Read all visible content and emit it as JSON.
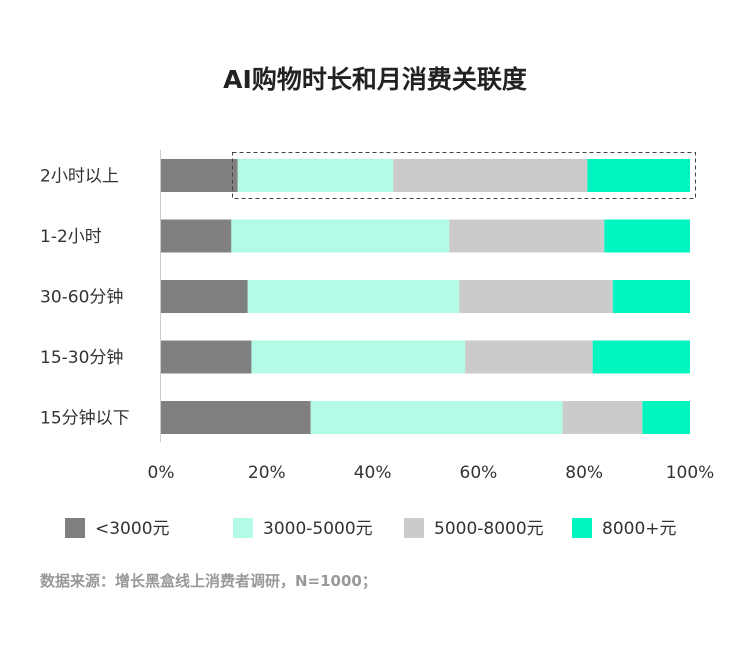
{
  "chart_data": {
    "type": "bar",
    "orientation": "horizontal",
    "stacked": true,
    "title": "AI购物时长和月消费关联度",
    "categories": [
      "2小时以上",
      "1-2小时",
      "30-60分钟",
      "15-30分钟",
      "15分钟以下"
    ],
    "series": [
      {
        "name": "<3000元",
        "color": "#808080",
        "values": [
          14.5,
          13.3,
          16.4,
          17.1,
          28.3
        ]
      },
      {
        "name": "3000-5000元",
        "color": "#b3fbe6",
        "values": [
          29.4,
          41.2,
          40.0,
          40.4,
          47.6
        ]
      },
      {
        "name": "5000-8000元",
        "color": "#cbcbcb",
        "values": [
          36.7,
          29.3,
          29.0,
          24.1,
          15.1
        ]
      },
      {
        "name": "8000+元",
        "color": "#00f5bf",
        "values": [
          19.4,
          16.2,
          14.6,
          18.4,
          9.0
        ]
      }
    ],
    "xlim": [
      0,
      100
    ],
    "xticks": [
      "0%",
      "20%",
      "40%",
      "60%",
      "80%",
      "100%"
    ],
    "grid": false,
    "legend_position": "bottom",
    "highlight": "2小时以上 (dashed box)"
  },
  "source": "数据来源：增长黑盒线上消费者调研，N=1000；"
}
